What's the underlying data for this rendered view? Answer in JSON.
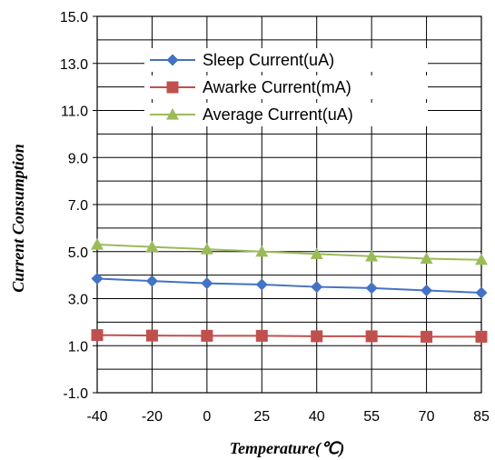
{
  "chart_data": {
    "type": "line",
    "title": "",
    "xlabel": "Temperature(℃)",
    "ylabel": "Current  Consumption",
    "categories": [
      "-40",
      "-20",
      "0",
      "25",
      "40",
      "55",
      "70",
      "85"
    ],
    "ylim": [
      -1.0,
      15.0
    ],
    "yticks": [
      "15.0",
      "13.0",
      "11.0",
      "9.0",
      "7.0",
      "5.0",
      "3.0",
      "1.0",
      "-1.0"
    ],
    "grid": true,
    "legend_position": "top-right",
    "series": [
      {
        "name": "Sleep Current(uA)",
        "values": [
          3.85,
          3.75,
          3.65,
          3.6,
          3.5,
          3.45,
          3.35,
          3.25
        ],
        "color": "#4472c4",
        "marker": "diamond"
      },
      {
        "name": "Awarke Current(mA)",
        "values": [
          1.45,
          1.43,
          1.42,
          1.42,
          1.4,
          1.4,
          1.38,
          1.38
        ],
        "color": "#c0504d",
        "marker": "square"
      },
      {
        "name": "Average Current(uA)",
        "values": [
          5.3,
          5.2,
          5.1,
          5.0,
          4.9,
          4.8,
          4.7,
          4.65
        ],
        "color": "#9bbb59",
        "marker": "triangle"
      }
    ]
  }
}
